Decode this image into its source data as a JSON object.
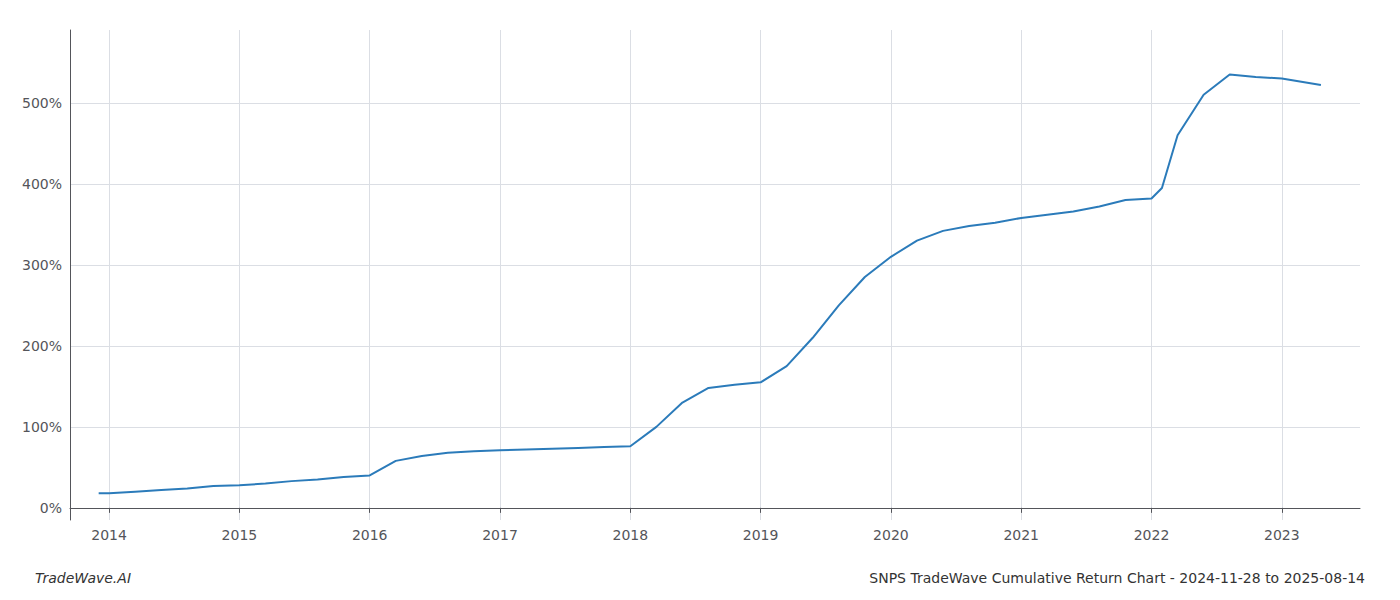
{
  "chart_data": {
    "type": "line",
    "title": "SNPS TradeWave Cumulative Return Chart - 2024-11-28 to 2025-08-14",
    "annotations": [
      "TradeWave.AI"
    ],
    "color": "#2b7bba",
    "x": [
      2013.92,
      2014.0,
      2014.2,
      2014.4,
      2014.6,
      2014.8,
      2015.0,
      2015.2,
      2015.4,
      2015.6,
      2015.8,
      2016.0,
      2016.2,
      2016.4,
      2016.6,
      2016.8,
      2017.0,
      2017.2,
      2017.4,
      2017.6,
      2017.8,
      2018.0,
      2018.2,
      2018.4,
      2018.6,
      2018.8,
      2019.0,
      2019.2,
      2019.4,
      2019.6,
      2019.8,
      2020.0,
      2020.2,
      2020.4,
      2020.6,
      2020.8,
      2021.0,
      2021.2,
      2021.4,
      2021.6,
      2021.8,
      2022.0,
      2022.08,
      2022.2,
      2022.4,
      2022.6,
      2022.8,
      2023.0,
      2023.3
    ],
    "values": [
      18,
      18,
      20,
      22,
      24,
      27,
      28,
      30,
      33,
      35,
      38,
      40,
      58,
      64,
      68,
      70,
      71,
      72,
      73,
      74,
      75,
      76,
      100,
      130,
      148,
      152,
      155,
      175,
      210,
      250,
      285,
      310,
      330,
      342,
      348,
      352,
      358,
      362,
      366,
      372,
      380,
      382,
      395,
      460,
      510,
      535,
      532,
      530,
      522
    ],
    "xlim": [
      2013.7,
      2023.6
    ],
    "xticks": [
      2014,
      2015,
      2016,
      2017,
      2018,
      2019,
      2020,
      2021,
      2022,
      2023
    ],
    "ylim": [
      -15,
      590
    ],
    "yticks": [
      {
        "value": 0,
        "label": "0%"
      },
      {
        "value": 100,
        "label": "100%"
      },
      {
        "value": 200,
        "label": "200%"
      },
      {
        "value": 300,
        "label": "300%"
      },
      {
        "value": 400,
        "label": "400%"
      },
      {
        "value": 500,
        "label": "500%"
      }
    ],
    "grid": true
  }
}
